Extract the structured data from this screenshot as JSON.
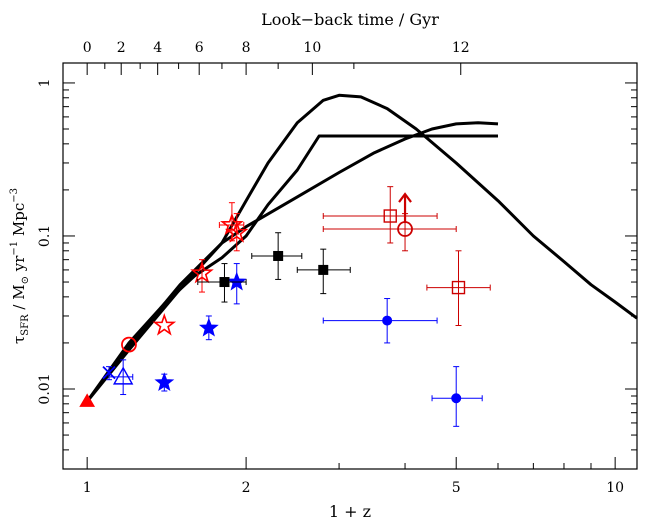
{
  "chart_data": {
    "type": "scatter",
    "title": "",
    "xlabel": "1 + z",
    "ylabel_main": "τ",
    "ylabel_sub": "SFR",
    "ylabel_rest": " / M",
    "ylabel_sun": "⊙",
    "ylabel_yr": " yr",
    "ylabel_exp1": "−1",
    "ylabel_mpc": " Mpc",
    "ylabel_exp2": "−3",
    "top_xlabel": "Look−back time / Gyr",
    "x_scale": "log",
    "y_scale": "log",
    "xlim": [
      0.9,
      11
    ],
    "ylim": [
      0.003,
      1.35
    ],
    "x_ticks": [
      {
        "value": 1,
        "label": "1"
      },
      {
        "value": 2,
        "label": "2"
      },
      {
        "value": 5,
        "label": "5"
      },
      {
        "value": 10,
        "label": "10"
      }
    ],
    "y_ticks": [
      {
        "value": 0.01,
        "label": "0.01"
      },
      {
        "value": 0.1,
        "label": "0.1"
      },
      {
        "value": 1,
        "label": "1"
      }
    ],
    "top_ticks": [
      {
        "label": "0",
        "onepz": 1.0
      },
      {
        "label": "2",
        "onepz": 1.16
      },
      {
        "label": "4",
        "onepz": 1.36
      },
      {
        "label": "6",
        "onepz": 1.63
      },
      {
        "label": "8",
        "onepz": 2.0
      },
      {
        "label": "10",
        "onepz": 2.67
      },
      {
        "label": "12",
        "onepz": 5.1
      }
    ],
    "curves": [
      {
        "name": "model-a",
        "points": [
          [
            1,
            0.0083
          ],
          [
            1.2,
            0.018
          ],
          [
            1.5,
            0.045
          ],
          [
            1.8,
            0.09
          ],
          [
            2.0,
            0.17
          ],
          [
            2.2,
            0.3
          ],
          [
            2.5,
            0.55
          ],
          [
            2.8,
            0.77
          ],
          [
            3.0,
            0.83
          ],
          [
            3.3,
            0.81
          ],
          [
            3.7,
            0.68
          ],
          [
            4.2,
            0.5
          ],
          [
            5.0,
            0.3
          ],
          [
            6.0,
            0.17
          ],
          [
            7.0,
            0.1
          ],
          [
            8.0,
            0.068
          ],
          [
            9.0,
            0.048
          ],
          [
            10.0,
            0.037
          ],
          [
            11.0,
            0.029
          ]
        ]
      },
      {
        "name": "model-b",
        "points": [
          [
            1,
            0.0083
          ],
          [
            1.2,
            0.02
          ],
          [
            1.4,
            0.036
          ],
          [
            1.6,
            0.055
          ],
          [
            1.8,
            0.072
          ],
          [
            2.0,
            0.1
          ],
          [
            2.2,
            0.16
          ],
          [
            2.5,
            0.27
          ],
          [
            2.75,
            0.45
          ],
          [
            3.5,
            0.45
          ],
          [
            4.5,
            0.45
          ],
          [
            6.0,
            0.45
          ]
        ]
      },
      {
        "name": "model-c",
        "points": [
          [
            1,
            0.0083
          ],
          [
            1.2,
            0.019
          ],
          [
            1.5,
            0.048
          ],
          [
            1.8,
            0.09
          ],
          [
            2.0,
            0.115
          ],
          [
            2.5,
            0.18
          ],
          [
            3.0,
            0.26
          ],
          [
            3.5,
            0.35
          ],
          [
            4.0,
            0.43
          ],
          [
            4.5,
            0.5
          ],
          [
            5.0,
            0.54
          ],
          [
            5.5,
            0.55
          ],
          [
            6.0,
            0.54
          ]
        ]
      }
    ],
    "points": [
      {
        "series": "red-triangle",
        "color": "#ff0000",
        "marker": "triangle-filled",
        "x": 1.0,
        "y": 0.0083
      },
      {
        "series": "red-circle",
        "color": "#ff0000",
        "marker": "circle-open",
        "x": 1.2,
        "y": 0.0195
      },
      {
        "series": "red-star",
        "color": "#ff0000",
        "marker": "star-open",
        "x": 1.4,
        "y": 0.026
      },
      {
        "series": "red-star",
        "color": "#ff0000",
        "marker": "star-open",
        "x": 1.65,
        "y": 0.057,
        "yerr": [
          0.043,
          0.07
        ]
      },
      {
        "series": "red-star",
        "color": "#ff0000",
        "marker": "star-open",
        "x": 1.88,
        "y": 0.118,
        "xerr": [
          1.78,
          1.98
        ],
        "yerr": [
          0.093,
          0.165
        ]
      },
      {
        "series": "red-star",
        "color": "#ff0000",
        "marker": "star-open",
        "x": 1.92,
        "y": 0.105,
        "yerr": [
          0.08,
          0.14
        ]
      },
      {
        "series": "red-square",
        "color": "#cc0000",
        "marker": "square-open",
        "x": 3.75,
        "y": 0.135,
        "xerr": [
          2.8,
          4.6
        ],
        "yerr": [
          0.09,
          0.21
        ]
      },
      {
        "series": "red-circle",
        "color": "#cc0000",
        "marker": "circle-open",
        "x": 4.0,
        "y": 0.111,
        "xerr": [
          2.8,
          5.0
        ],
        "yerr": [
          0.08,
          0.14
        ],
        "arrow_up": true
      },
      {
        "series": "red-square",
        "color": "#cc0000",
        "marker": "square-open",
        "x": 5.05,
        "y": 0.046,
        "xerr": [
          4.4,
          5.8
        ],
        "yerr": [
          0.026,
          0.08
        ]
      },
      {
        "series": "blue-cross",
        "color": "#0000ff",
        "marker": "cross",
        "x": 1.1,
        "y": 0.0128,
        "yerr": [
          0.0115,
          0.014
        ]
      },
      {
        "series": "blue-triangle",
        "color": "#0000ff",
        "marker": "triangle-open",
        "x": 1.17,
        "y": 0.012,
        "xerr": [
          1.1,
          1.22
        ],
        "yerr": [
          0.0092,
          0.0155
        ]
      },
      {
        "series": "blue-star",
        "color": "#0000ff",
        "marker": "star-filled",
        "x": 1.4,
        "y": 0.011,
        "yerr": [
          0.0097,
          0.0125
        ]
      },
      {
        "series": "blue-star",
        "color": "#0000ff",
        "marker": "star-filled",
        "x": 1.7,
        "y": 0.025,
        "yerr": [
          0.021,
          0.03
        ]
      },
      {
        "series": "blue-star",
        "color": "#0000ff",
        "marker": "star-filled",
        "x": 1.92,
        "y": 0.05,
        "yerr": [
          0.036,
          0.066
        ]
      },
      {
        "series": "blue-circle",
        "color": "#0000ff",
        "marker": "circle-filled",
        "x": 3.7,
        "y": 0.028,
        "xerr": [
          2.8,
          4.6
        ],
        "yerr": [
          0.02,
          0.039
        ]
      },
      {
        "series": "blue-circle",
        "color": "#0000ff",
        "marker": "circle-filled",
        "x": 5.0,
        "y": 0.0087,
        "xerr": [
          4.5,
          5.6
        ],
        "yerr": [
          0.0057,
          0.014
        ]
      },
      {
        "series": "black-square",
        "color": "#000000",
        "marker": "square-filled",
        "x": 1.82,
        "y": 0.05,
        "xerr": [
          1.62,
          2.0
        ],
        "yerr": [
          0.037,
          0.066
        ]
      },
      {
        "series": "black-square",
        "color": "#000000",
        "marker": "square-filled",
        "x": 2.3,
        "y": 0.074,
        "xerr": [
          2.05,
          2.55
        ],
        "yerr": [
          0.052,
          0.105
        ]
      },
      {
        "series": "black-square",
        "color": "#000000",
        "marker": "square-filled",
        "x": 2.8,
        "y": 0.06,
        "xerr": [
          2.5,
          3.15
        ],
        "yerr": [
          0.042,
          0.082
        ]
      }
    ]
  }
}
